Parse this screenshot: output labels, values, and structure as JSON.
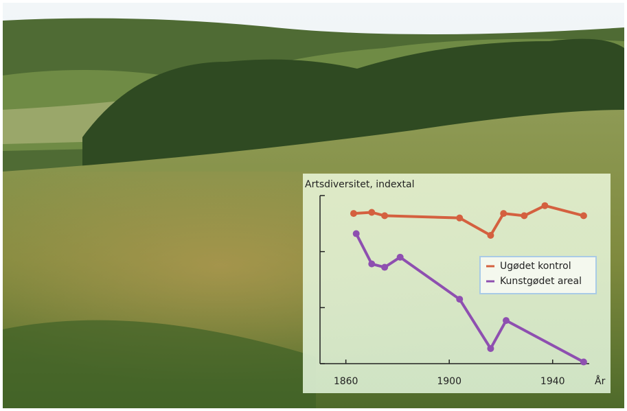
{
  "chart_data": {
    "type": "line",
    "y_label": "Artsdiversitet, indextal",
    "x_label": "År",
    "xlim": [
      1850,
      1960
    ],
    "xticks": [
      1860,
      1900,
      1940
    ],
    "ylim": [
      0,
      3
    ],
    "yticks": [
      0,
      1,
      2,
      3
    ],
    "legend": "right",
    "series": [
      {
        "name": "Ugødet kontrol",
        "color": "#d4603f",
        "x": [
          1863,
          1870,
          1875,
          1904,
          1916,
          1921,
          1929,
          1937,
          1952
        ],
        "values": [
          2.68,
          2.7,
          2.64,
          2.6,
          2.29,
          2.68,
          2.64,
          2.82,
          2.64
        ]
      },
      {
        "name": "Kunstgødet areal",
        "color": "#8e4fb0",
        "x": [
          1864,
          1870,
          1875,
          1881,
          1904,
          1916,
          1922,
          1952
        ],
        "values": [
          2.32,
          1.78,
          1.72,
          1.9,
          1.15,
          0.27,
          0.77,
          0.03
        ]
      }
    ]
  }
}
